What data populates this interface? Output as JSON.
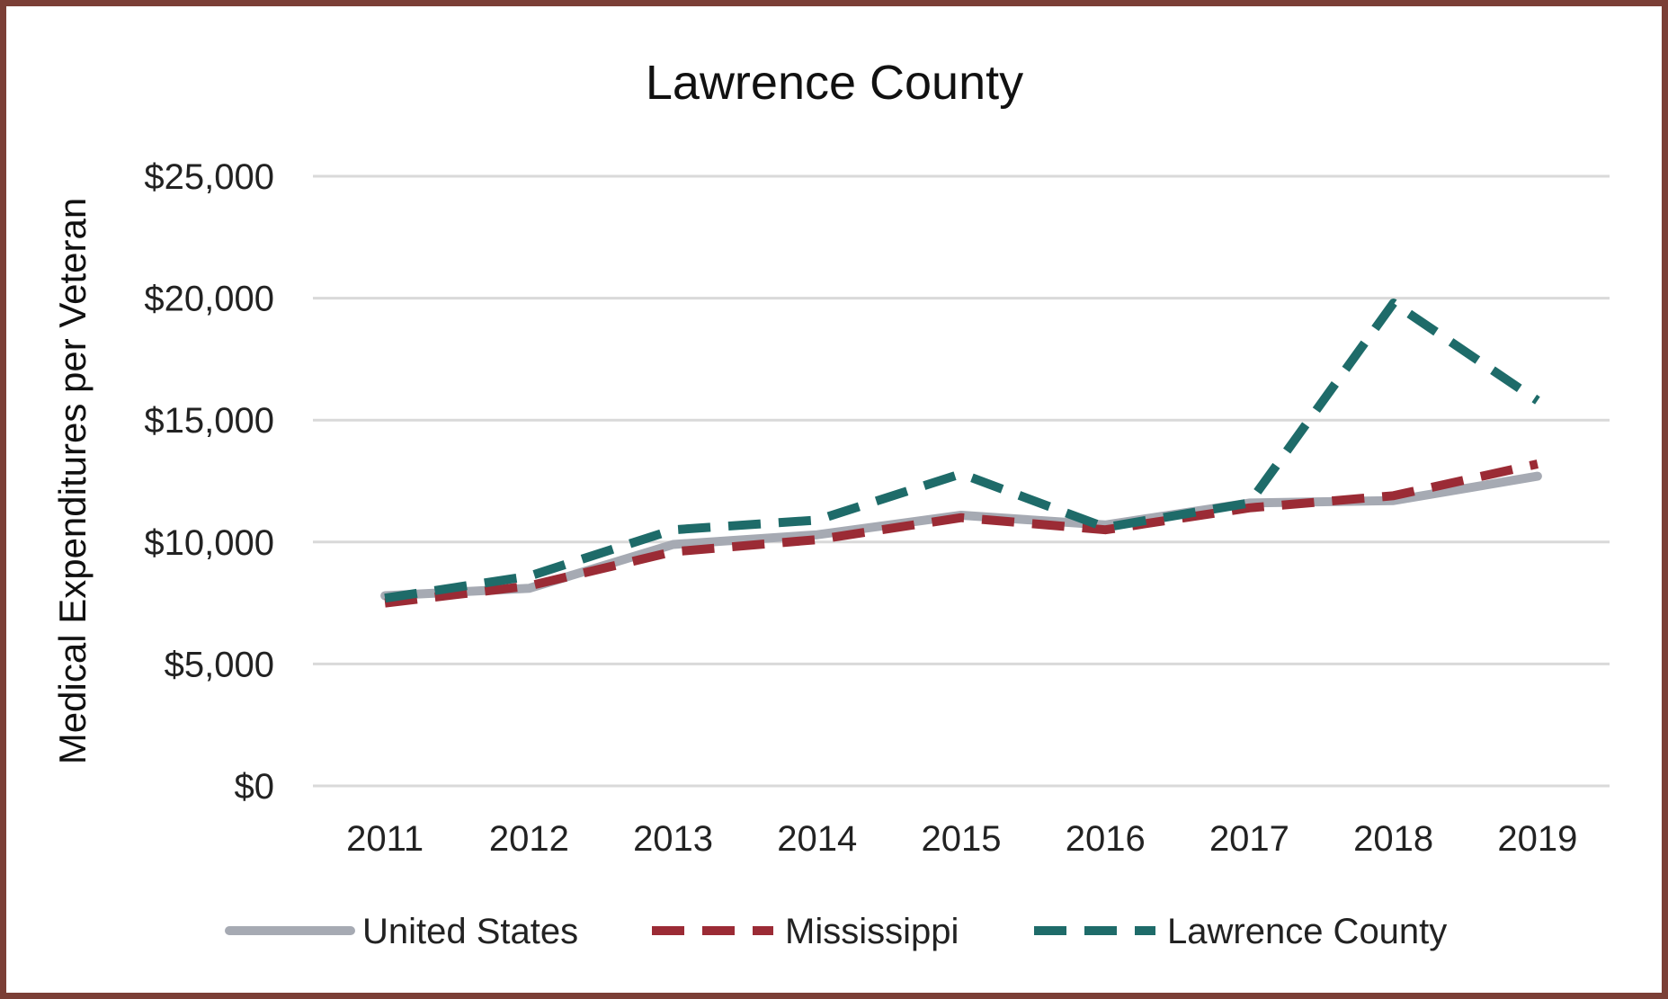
{
  "chart_data": {
    "type": "line",
    "title": "Lawrence County",
    "xlabel": "",
    "ylabel": "Medical Expenditures per Veteran",
    "categories": [
      "2011",
      "2012",
      "2013",
      "2014",
      "2015",
      "2016",
      "2017",
      "2018",
      "2019"
    ],
    "ylim": [
      0,
      25000
    ],
    "yticks": [
      0,
      5000,
      10000,
      15000,
      20000,
      25000
    ],
    "ytick_labels": [
      "$0",
      "$5,000",
      "$10,000",
      "$15,000",
      "$20,000",
      "$25,000"
    ],
    "grid": true,
    "legend_position": "bottom",
    "series": [
      {
        "name": "United States",
        "color": "#a6aab3",
        "style": "solid",
        "values": [
          7800,
          8100,
          9900,
          10300,
          11100,
          10700,
          11600,
          11700,
          12700
        ]
      },
      {
        "name": "Mississippi",
        "color": "#9b2b35",
        "style": "dashed",
        "values": [
          7500,
          8200,
          9600,
          10100,
          11000,
          10500,
          11400,
          11900,
          13200
        ]
      },
      {
        "name": "Lawrence County",
        "color": "#1e6b69",
        "style": "dashed",
        "values": [
          7700,
          8600,
          10500,
          10900,
          12800,
          10600,
          11600,
          19800,
          15800
        ]
      }
    ]
  }
}
